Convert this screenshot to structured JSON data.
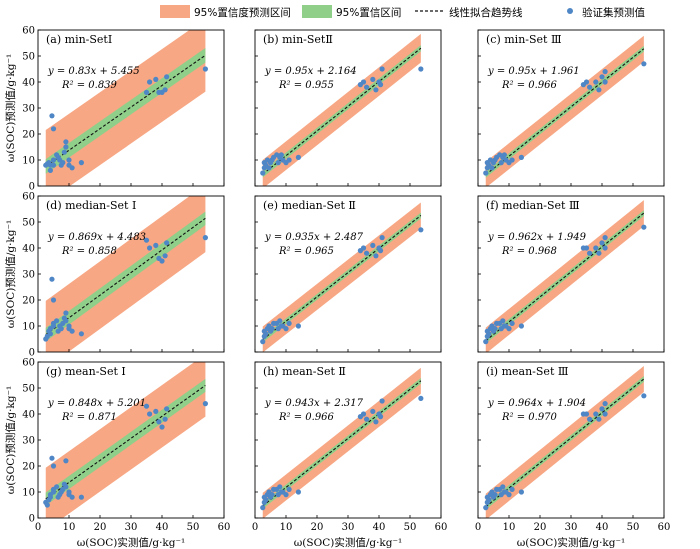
{
  "legend": {
    "prediction_band": "95%置信度预测区间",
    "confidence_band": "95%置信区间",
    "fit_line": "线性拟合趋势线",
    "points": "验证集预测值"
  },
  "colors": {
    "prediction_band": "#f7a784",
    "confidence_band": "#8fcf8a",
    "fit_line": "#111111",
    "points": "#4f86c6"
  },
  "axis_labels": {
    "x": "ω(SOC)实测值/g·kg⁻¹",
    "y": "ω(SOC)预测值/g·kg⁻¹"
  },
  "chart_data": [
    {
      "type": "scatter",
      "title": "(a) min-SetⅠ",
      "equation": "y = 0.83x + 5.455",
      "r2": "R² = 0.839",
      "slope": 0.83,
      "intercept": 5.455,
      "pi_half": 14,
      "ci_half": 2.8,
      "x": [
        2.5,
        3,
        3.5,
        4,
        4,
        5,
        5,
        6,
        6.5,
        7,
        7.5,
        8,
        8.5,
        9,
        10,
        10,
        11,
        14,
        4.5,
        5,
        9,
        35,
        36,
        38,
        39,
        40,
        41,
        41.5,
        54
      ],
      "y": [
        8,
        8.5,
        9,
        6,
        8,
        10,
        8,
        12,
        11,
        10,
        8,
        9,
        13,
        17,
        10,
        8,
        7,
        9,
        27,
        22,
        15,
        36,
        40,
        41,
        36,
        36,
        37,
        42,
        45
      ],
      "xlim": [
        0,
        60
      ],
      "ylim": [
        0,
        60
      ]
    },
    {
      "type": "scatter",
      "title": "(b) min-SetⅡ",
      "equation": "y = 0.95x + 2.164",
      "r2": "R² = 0.955",
      "slope": 0.95,
      "intercept": 2.164,
      "pi_half": 5.5,
      "ci_half": 1.2,
      "x": [
        2.5,
        3,
        3,
        3.5,
        4,
        4.5,
        5,
        5.5,
        6,
        7,
        7.5,
        8,
        8.5,
        9,
        10,
        11,
        14,
        34,
        35,
        36,
        38,
        39,
        40,
        40.5,
        41,
        53.5
      ],
      "y": [
        5,
        7,
        9,
        8,
        10,
        7,
        9,
        10,
        11,
        12,
        9,
        11,
        12,
        10,
        9,
        10,
        11,
        39,
        40,
        38,
        41,
        37,
        40,
        39,
        45,
        45
      ],
      "xlim": [
        0,
        60
      ],
      "ylim": [
        0,
        60
      ]
    },
    {
      "type": "scatter",
      "title": "(c) min-Set Ⅲ",
      "equation": "y = 0.95x + 1.961",
      "r2": "R² = 0.966",
      "slope": 0.95,
      "intercept": 1.961,
      "pi_half": 5,
      "ci_half": 1.1,
      "x": [
        2.5,
        3,
        3,
        3.5,
        4,
        4.5,
        5,
        5.5,
        6,
        7,
        7.5,
        8,
        8.5,
        9,
        10,
        11,
        14,
        34,
        35,
        36,
        38,
        39,
        40,
        41,
        41,
        53.5
      ],
      "y": [
        5,
        7,
        9,
        8,
        10,
        7,
        9,
        10,
        11,
        12,
        9,
        11,
        12,
        10,
        9,
        10,
        11,
        39,
        40,
        38,
        40,
        37,
        42,
        40,
        44,
        47
      ],
      "xlim": [
        0,
        60
      ],
      "ylim": [
        0,
        60
      ]
    },
    {
      "type": "scatter",
      "title": "(d) median-Set Ⅰ",
      "equation": "y = 0.869x + 4.483",
      "r2": "R² = 0.858",
      "slope": 0.869,
      "intercept": 4.483,
      "pi_half": 13,
      "ci_half": 2.6,
      "x": [
        2.5,
        3,
        3.5,
        4,
        4,
        5,
        5,
        6,
        6.5,
        7,
        7.5,
        8,
        8.5,
        9,
        10,
        10,
        11,
        14,
        4.5,
        5,
        9,
        35,
        36,
        38,
        39,
        40,
        41,
        41.5,
        54
      ],
      "y": [
        5,
        6,
        8,
        7,
        9,
        10,
        11,
        12,
        8,
        10,
        9,
        11,
        13,
        12,
        10,
        9,
        8,
        7,
        28,
        20,
        15,
        43,
        40,
        41,
        36,
        35,
        37,
        42,
        44
      ],
      "xlim": [
        0,
        60
      ],
      "ylim": [
        0,
        60
      ]
    },
    {
      "type": "scatter",
      "title": "(e) median-Set Ⅱ",
      "equation": "y = 0.935x + 2.487",
      "r2": "R² = 0.965",
      "slope": 0.935,
      "intercept": 2.487,
      "pi_half": 5,
      "ci_half": 1.1,
      "x": [
        2.5,
        3,
        3,
        3.5,
        4,
        4.5,
        5,
        5.5,
        6,
        7,
        7.5,
        8,
        8.5,
        9,
        10,
        11,
        14,
        34,
        35,
        36,
        38,
        39,
        40,
        40.5,
        41,
        53.5
      ],
      "y": [
        4,
        6,
        8,
        7,
        9,
        10,
        8,
        9,
        11,
        11,
        9,
        12,
        10,
        10,
        9,
        11,
        10,
        39,
        40,
        38,
        41,
        37,
        40,
        39,
        44,
        47
      ],
      "xlim": [
        0,
        60
      ],
      "ylim": [
        0,
        60
      ]
    },
    {
      "type": "scatter",
      "title": "(f) median-Set Ⅲ",
      "equation": "y = 0.962x + 1.949",
      "r2": "R² = 0.968",
      "slope": 0.962,
      "intercept": 1.949,
      "pi_half": 5,
      "ci_half": 1.1,
      "x": [
        2.5,
        3,
        3,
        3.5,
        4,
        4.5,
        5,
        5.5,
        6,
        7,
        7.5,
        8,
        8.5,
        9,
        10,
        11,
        14,
        34,
        35,
        36,
        38,
        39,
        40,
        41,
        41,
        53.5
      ],
      "y": [
        4,
        6,
        8,
        7,
        9,
        10,
        8,
        9,
        11,
        11,
        9,
        12,
        10,
        10,
        9,
        11,
        10,
        40,
        40,
        38,
        40,
        38,
        42,
        40,
        44,
        48
      ],
      "xlim": [
        0,
        60
      ],
      "ylim": [
        0,
        60
      ]
    },
    {
      "type": "scatter",
      "title": "(g) mean-Set Ⅰ",
      "equation": "y = 0.848x + 5.201",
      "r2": "R² = 0.871",
      "slope": 0.848,
      "intercept": 5.201,
      "pi_half": 12,
      "ci_half": 2.5,
      "x": [
        2.5,
        3,
        3.5,
        4,
        4,
        5,
        5,
        6,
        6.5,
        7,
        7.5,
        8,
        8.5,
        9,
        10,
        10,
        11,
        14,
        4.5,
        5,
        9,
        35,
        36,
        38,
        39,
        40,
        41,
        41.5,
        54
      ],
      "y": [
        6,
        5,
        7,
        8,
        9,
        10,
        11,
        12,
        8,
        9,
        10,
        11,
        13,
        12,
        10,
        9,
        8,
        8,
        23,
        20,
        22,
        43,
        40,
        41,
        37,
        35,
        38,
        42,
        44
      ],
      "xlim": [
        0,
        60
      ],
      "ylim": [
        0,
        60
      ]
    },
    {
      "type": "scatter",
      "title": "(h) mean-Set Ⅱ",
      "equation": "y = 0.943x + 2.317",
      "r2": "R² = 0.966",
      "slope": 0.943,
      "intercept": 2.317,
      "pi_half": 5,
      "ci_half": 1.1,
      "x": [
        2.5,
        3,
        3,
        3.5,
        4,
        4.5,
        5,
        5.5,
        6,
        7,
        7.5,
        8,
        8.5,
        9,
        10,
        11,
        14,
        34,
        35,
        36,
        38,
        39,
        40,
        40.5,
        41,
        53.5
      ],
      "y": [
        4,
        6,
        8,
        7,
        9,
        10,
        8,
        9,
        11,
        11,
        9,
        12,
        10,
        10,
        9,
        11,
        10,
        39,
        40,
        38,
        41,
        37,
        40,
        39,
        45,
        46
      ],
      "xlim": [
        0,
        60
      ],
      "ylim": [
        0,
        60
      ]
    },
    {
      "type": "scatter",
      "title": "(i) mean-Set Ⅲ",
      "equation": "y = 0.964x + 1.904",
      "r2": "R² = 0.970",
      "slope": 0.964,
      "intercept": 1.904,
      "pi_half": 5,
      "ci_half": 1.1,
      "x": [
        2.5,
        3,
        3,
        3.5,
        4,
        4.5,
        5,
        5.5,
        6,
        7,
        7.5,
        8,
        8.5,
        9,
        10,
        11,
        14,
        34,
        35,
        36,
        38,
        39,
        40,
        41,
        41,
        53.5
      ],
      "y": [
        4,
        6,
        8,
        7,
        9,
        10,
        8,
        9,
        11,
        11,
        9,
        12,
        10,
        10,
        9,
        11,
        10,
        40,
        40,
        38,
        40,
        38,
        42,
        40,
        44,
        47
      ],
      "xlim": [
        0,
        60
      ],
      "ylim": [
        0,
        60
      ]
    }
  ]
}
